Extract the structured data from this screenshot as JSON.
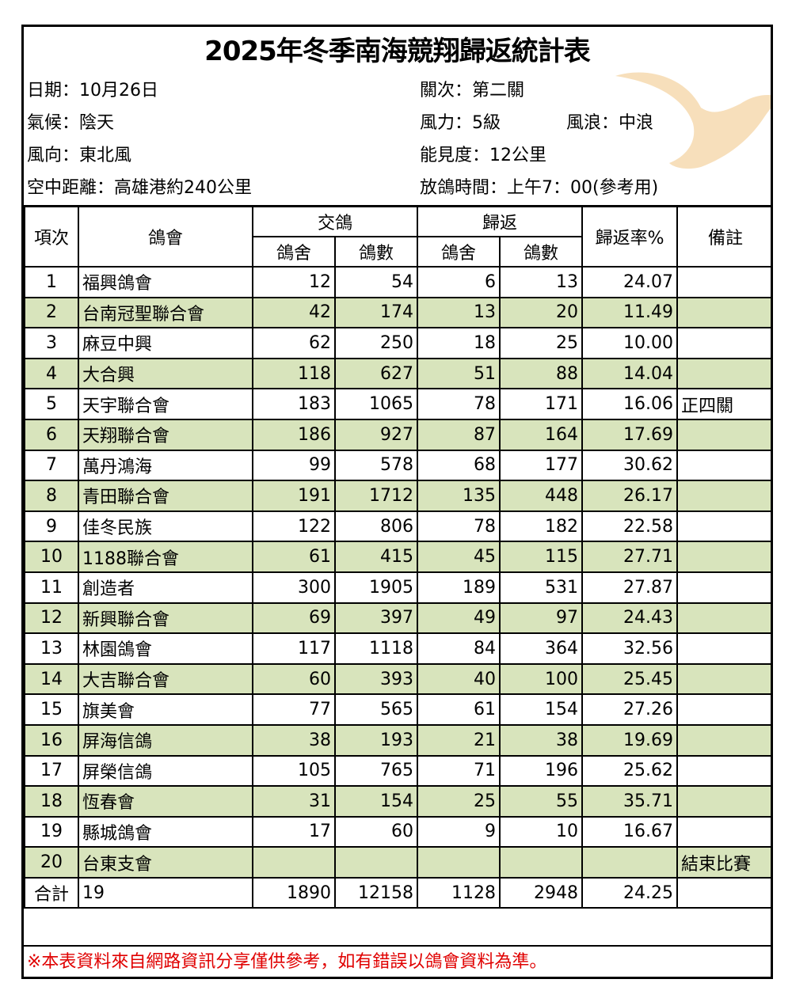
{
  "title": "2025年冬季南海競翔歸返統計表",
  "info": {
    "date": "日期：10月26日",
    "weather": "氣候：陰天",
    "wind_direction": "風向：東北風",
    "distance": "空中距離：高雄港約240公里",
    "stage": "關次：第二關",
    "wind_force": "風力：5級",
    "waves": "風浪：中浪",
    "visibility": "能見度：12公里",
    "release_time": "放鴿時間：上午7：00(參考用)"
  },
  "colors": {
    "row_highlight": "#d8e4bc",
    "note_text": "#e00000",
    "bird": "#f7dfbb"
  },
  "decoration_icon": "dove-icon",
  "headers": {
    "index": "項次",
    "club": "鴿會",
    "entered": "交鴿",
    "returned": "歸返",
    "lofts": "鴿舍",
    "birds": "鴿數",
    "rate": "歸返率%",
    "remarks": "備註"
  },
  "rows": [
    {
      "no": "1",
      "club": "福興鴿會",
      "in_lofts": "12",
      "in_birds": "54",
      "ret_lofts": "6",
      "ret_birds": "13",
      "rate": "24.07",
      "remark": ""
    },
    {
      "no": "2",
      "club": "台南冠聖聯合會",
      "in_lofts": "42",
      "in_birds": "174",
      "ret_lofts": "13",
      "ret_birds": "20",
      "rate": "11.49",
      "remark": ""
    },
    {
      "no": "3",
      "club": "麻豆中興",
      "in_lofts": "62",
      "in_birds": "250",
      "ret_lofts": "18",
      "ret_birds": "25",
      "rate": "10.00",
      "remark": ""
    },
    {
      "no": "4",
      "club": "大合興",
      "in_lofts": "118",
      "in_birds": "627",
      "ret_lofts": "51",
      "ret_birds": "88",
      "rate": "14.04",
      "remark": ""
    },
    {
      "no": "5",
      "club": "天宇聯合會",
      "in_lofts": "183",
      "in_birds": "1065",
      "ret_lofts": "78",
      "ret_birds": "171",
      "rate": "16.06",
      "remark": "正四關"
    },
    {
      "no": "6",
      "club": "天翔聯合會",
      "in_lofts": "186",
      "in_birds": "927",
      "ret_lofts": "87",
      "ret_birds": "164",
      "rate": "17.69",
      "remark": ""
    },
    {
      "no": "7",
      "club": "萬丹鴻海",
      "in_lofts": "99",
      "in_birds": "578",
      "ret_lofts": "68",
      "ret_birds": "177",
      "rate": "30.62",
      "remark": ""
    },
    {
      "no": "8",
      "club": "青田聯合會",
      "in_lofts": "191",
      "in_birds": "1712",
      "ret_lofts": "135",
      "ret_birds": "448",
      "rate": "26.17",
      "remark": ""
    },
    {
      "no": "9",
      "club": "佳冬民族",
      "in_lofts": "122",
      "in_birds": "806",
      "ret_lofts": "78",
      "ret_birds": "182",
      "rate": "22.58",
      "remark": ""
    },
    {
      "no": "10",
      "club": "1188聯合會",
      "in_lofts": "61",
      "in_birds": "415",
      "ret_lofts": "45",
      "ret_birds": "115",
      "rate": "27.71",
      "remark": ""
    },
    {
      "no": "11",
      "club": "創造者",
      "in_lofts": "300",
      "in_birds": "1905",
      "ret_lofts": "189",
      "ret_birds": "531",
      "rate": "27.87",
      "remark": ""
    },
    {
      "no": "12",
      "club": "新興聯合會",
      "in_lofts": "69",
      "in_birds": "397",
      "ret_lofts": "49",
      "ret_birds": "97",
      "rate": "24.43",
      "remark": ""
    },
    {
      "no": "13",
      "club": "林園鴿會",
      "in_lofts": "117",
      "in_birds": "1118",
      "ret_lofts": "84",
      "ret_birds": "364",
      "rate": "32.56",
      "remark": ""
    },
    {
      "no": "14",
      "club": "大吉聯合會",
      "in_lofts": "60",
      "in_birds": "393",
      "ret_lofts": "40",
      "ret_birds": "100",
      "rate": "25.45",
      "remark": ""
    },
    {
      "no": "15",
      "club": "旗美會",
      "in_lofts": "77",
      "in_birds": "565",
      "ret_lofts": "61",
      "ret_birds": "154",
      "rate": "27.26",
      "remark": ""
    },
    {
      "no": "16",
      "club": "屏海信鴿",
      "in_lofts": "38",
      "in_birds": "193",
      "ret_lofts": "21",
      "ret_birds": "38",
      "rate": "19.69",
      "remark": ""
    },
    {
      "no": "17",
      "club": "屏榮信鴿",
      "in_lofts": "105",
      "in_birds": "765",
      "ret_lofts": "71",
      "ret_birds": "196",
      "rate": "25.62",
      "remark": ""
    },
    {
      "no": "18",
      "club": "恆春會",
      "in_lofts": "31",
      "in_birds": "154",
      "ret_lofts": "25",
      "ret_birds": "55",
      "rate": "35.71",
      "remark": ""
    },
    {
      "no": "19",
      "club": "縣城鴿會",
      "in_lofts": "17",
      "in_birds": "60",
      "ret_lofts": "9",
      "ret_birds": "10",
      "rate": "16.67",
      "remark": ""
    },
    {
      "no": "20",
      "club": "台東支會",
      "in_lofts": "",
      "in_birds": "",
      "ret_lofts": "",
      "ret_birds": "",
      "rate": "",
      "remark": "結束比賽"
    }
  ],
  "total": {
    "label": "合計",
    "club_count": "19",
    "in_lofts": "1890",
    "in_birds": "12158",
    "ret_lofts": "1128",
    "ret_birds": "2948",
    "rate": "24.25",
    "remark": ""
  },
  "note": "※本表資料來自網路資訊分享僅供參考，如有錯誤以鴿會資料為準。"
}
